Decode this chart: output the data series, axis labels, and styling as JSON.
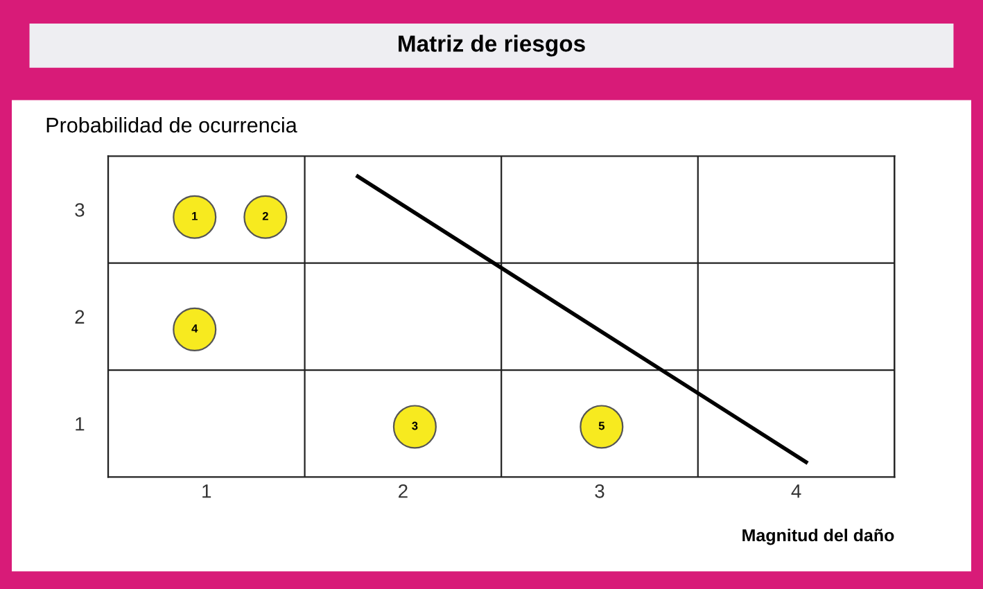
{
  "chart_data": {
    "type": "scatter",
    "title": "Matriz de riesgos",
    "ylabel": "Probabilidad de ocurrencia",
    "xlabel": "Magnitud del daño",
    "xlim": [
      0.5,
      4.5
    ],
    "ylim": [
      0.5,
      3.5
    ],
    "xticks": [
      {
        "value": 0.5,
        "label": null
      },
      1,
      {
        "value": 1.5,
        "label": null
      },
      2,
      {
        "value": 2.5,
        "label": null
      },
      3,
      {
        "value": 3.5,
        "label": null
      },
      4,
      {
        "value": 4.5,
        "label": null
      }
    ],
    "yticks": [
      {
        "value": 0.5,
        "label": null
      },
      1,
      {
        "value": 1.5,
        "label": null
      },
      2,
      {
        "value": 2.5,
        "label": null
      },
      3,
      {
        "value": 3.5,
        "label": null
      }
    ],
    "grid": true,
    "legend": false,
    "annotations": [
      {
        "text": "1",
        "x": 0.94,
        "y": 2.93
      },
      {
        "text": "2",
        "x": 1.3,
        "y": 2.93
      },
      {
        "text": "3",
        "x": 2.06,
        "y": 0.97
      },
      {
        "text": "4",
        "x": 0.94,
        "y": 1.88
      },
      {
        "text": "5",
        "x": 3.01,
        "y": 0.97
      }
    ],
    "series": [
      {
        "color": "#f7ea1f",
        "marker": "circle",
        "x": [
          0.94,
          1.3,
          2.06,
          0.94,
          3.01
        ],
        "values": [
          2.93,
          2.93,
          0.97,
          1.88,
          0.97
        ]
      },
      {
        "type": "line",
        "color": "#000000",
        "x": [
          1.77,
          4.05
        ],
        "values": [
          3.31,
          0.64
        ]
      }
    ]
  }
}
